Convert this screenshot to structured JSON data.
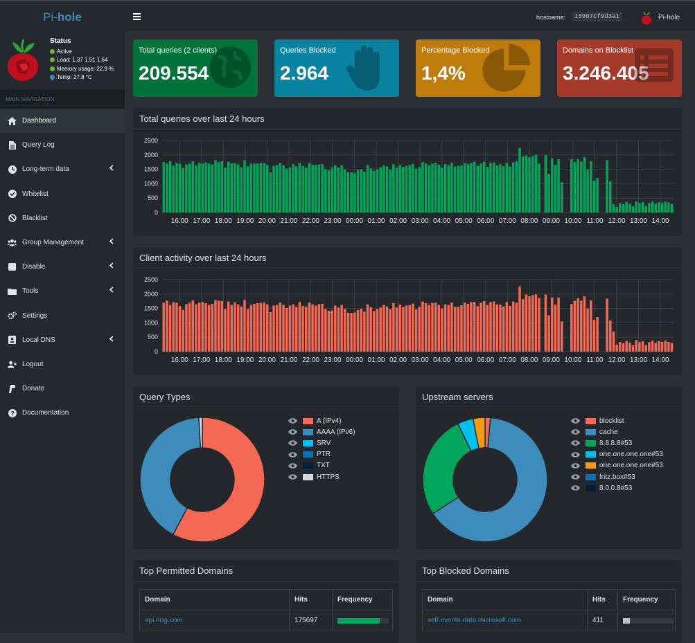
{
  "app": {
    "name_part1": "Pi-",
    "name_part2": "hole"
  },
  "status": {
    "title": "Status",
    "active": "Active",
    "load": "Load:  1.37  1.51  1.64",
    "memory": "Memory usage:  22.9 %",
    "temp": "Temp: 27.8 °C"
  },
  "nav": {
    "section": "MAIN NAVIGATION",
    "items": [
      {
        "label": "Dashboard",
        "icon": "home-icon"
      },
      {
        "label": "Query Log",
        "icon": "file-icon"
      },
      {
        "label": "Long-term data",
        "icon": "clock-icon"
      },
      {
        "label": "Whitelist",
        "icon": "check-circle-icon"
      },
      {
        "label": "Blacklist",
        "icon": "ban-icon"
      },
      {
        "label": "Group Management",
        "icon": "users-icon"
      },
      {
        "label": "Disable",
        "icon": "stop-icon"
      },
      {
        "label": "Tools",
        "icon": "folder-icon"
      },
      {
        "label": "Settings",
        "icon": "cogs-icon"
      },
      {
        "label": "Local DNS",
        "icon": "address-book-icon"
      },
      {
        "label": "Logout",
        "icon": "user-times-icon"
      },
      {
        "label": "Donate",
        "icon": "paypal-icon"
      },
      {
        "label": "Documentation",
        "icon": "question-circle-icon"
      }
    ]
  },
  "topbar": {
    "hostname_label": "hostname:",
    "hostname_value": "13907cf9d3a1",
    "user": "Pi-hole"
  },
  "stats": [
    {
      "label": "Total queries (2 clients)",
      "value": "209.554",
      "color": "#00733a"
    },
    {
      "label": "Queries Blocked",
      "value": "2.964",
      "color": "#0a83a1"
    },
    {
      "label": "Percentage Blocked",
      "value": "1,4%",
      "color": "#bf7c0b"
    },
    {
      "label": "Domains on Blocklist",
      "value": "3.246.405",
      "color": "#a53a2b"
    }
  ],
  "panels": {
    "total_queries": "Total queries over last 24 hours",
    "client_activity": "Client activity over last 24 hours",
    "query_types": "Query Types",
    "upstream": "Upstream servers",
    "top_permitted": "Top Permitted Domains",
    "top_blocked": "Top Blocked Domains"
  },
  "chart_data": [
    {
      "type": "bar",
      "title": "Total queries over last 24 hours",
      "ylim": [
        0,
        2500
      ],
      "yticks": [
        "2500",
        "2000",
        "1500",
        "1000",
        "500",
        "0"
      ],
      "xticks": [
        "16:00",
        "17:00",
        "18:00",
        "19:00",
        "20:00",
        "21:00",
        "22:00",
        "23:00",
        "00:00",
        "01:00",
        "02:00",
        "03:00",
        "04:00",
        "05:00",
        "06:00",
        "07:00",
        "08:00",
        "09:00",
        "10:00",
        "11:00",
        "12:00",
        "13:00",
        "14:00"
      ],
      "series": [
        {
          "values": [
            1750,
            1700,
            1780,
            1620,
            1720,
            1700,
            1550,
            1670,
            1700,
            1780,
            1640,
            1720,
            1700,
            1740,
            1700,
            1670,
            1820,
            1750,
            1780,
            1560,
            1760,
            1700,
            1720,
            1670,
            1570,
            1820,
            1600,
            1700,
            1700,
            1700,
            1720,
            1730,
            1660,
            1400,
            1620,
            1650,
            1710,
            1640,
            1530,
            1570,
            1680,
            1600,
            1720,
            1620,
            1560,
            1720,
            1660,
            1650,
            1670,
            1680,
            1500,
            1460,
            1570,
            1640,
            1560,
            1640,
            1500,
            1400,
            1400,
            1370,
            1480,
            1500,
            1420,
            1650,
            1530,
            1450,
            1500,
            1570,
            1640,
            1600,
            1500,
            1680,
            1560,
            1650,
            1580,
            1620,
            1650,
            1690,
            1520,
            1580,
            1750,
            1700,
            1640,
            1700,
            1730,
            1660,
            1560,
            1680,
            1640,
            1720,
            1600,
            1620,
            1630,
            1720,
            1690,
            1720,
            1760,
            1620,
            1700,
            1760,
            1580,
            1730,
            1740,
            1640,
            1680,
            1610,
            1720,
            1600,
            1740,
            1780,
            2250,
            1940,
            1980,
            1920,
            1960,
            2000,
            1700,
            0,
            2000,
            1340,
            1880,
            1650,
            1850,
            1050,
            0,
            0,
            1850,
            1760,
            1850,
            1770,
            1920,
            1500,
            1780,
            1100,
            1200,
            0,
            0,
            1820,
            1080,
            290,
            190,
            330,
            290,
            370,
            310,
            220,
            390,
            330,
            360,
            230,
            330,
            380,
            300,
            360,
            340,
            380,
            350,
            300
          ]
        }
      ]
    },
    {
      "type": "bar",
      "title": "Client activity over last 24 hours",
      "ylim": [
        0,
        2500
      ],
      "yticks": [
        "2500",
        "2000",
        "1500",
        "1000",
        "500",
        "0"
      ],
      "xticks": [
        "16:00",
        "17:00",
        "18:00",
        "19:00",
        "20:00",
        "21:00",
        "22:00",
        "23:00",
        "00:00",
        "01:00",
        "02:00",
        "03:00",
        "04:00",
        "05:00",
        "06:00",
        "07:00",
        "08:00",
        "09:00",
        "10:00",
        "11:00",
        "12:00",
        "13:00",
        "14:00"
      ],
      "series": [
        {
          "values": [
            1700,
            1770,
            1620,
            1720,
            1700,
            1580,
            1450,
            1650,
            1700,
            1780,
            1640,
            1700,
            1720,
            1680,
            1620,
            1660,
            1790,
            1770,
            1760,
            1480,
            1740,
            1620,
            1710,
            1640,
            1570,
            1800,
            1480,
            1620,
            1660,
            1680,
            1690,
            1710,
            1640,
            1370,
            1600,
            1620,
            1700,
            1620,
            1520,
            1600,
            1640,
            1560,
            1720,
            1590,
            1560,
            1700,
            1640,
            1600,
            1650,
            1660,
            1480,
            1420,
            1430,
            1600,
            1530,
            1620,
            1480,
            1350,
            1340,
            1360,
            1440,
            1490,
            1390,
            1640,
            1540,
            1410,
            1480,
            1530,
            1620,
            1570,
            1470,
            1680,
            1530,
            1630,
            1550,
            1600,
            1620,
            1670,
            1470,
            1560,
            1740,
            1680,
            1620,
            1690,
            1700,
            1620,
            1500,
            1640,
            1620,
            1700,
            1560,
            1560,
            1610,
            1700,
            1660,
            1720,
            1730,
            1580,
            1700,
            1750,
            1620,
            1720,
            1740,
            1640,
            1630,
            1570,
            1720,
            1590,
            1740,
            1700,
            2260,
            1820,
            1980,
            1920,
            1960,
            1990,
            1860,
            0,
            1980,
            1260,
            1880,
            1630,
            1880,
            1050,
            0,
            0,
            1650,
            1760,
            1850,
            1770,
            1930,
            1500,
            1780,
            1100,
            1200,
            0,
            0,
            1840,
            1080,
            700,
            240,
            330,
            290,
            370,
            310,
            220,
            400,
            330,
            360,
            230,
            330,
            380,
            300,
            360,
            340,
            380,
            340,
            300
          ]
        }
      ]
    },
    {
      "type": "pie",
      "title": "Query Types",
      "labels": [
        "A (IPv4)",
        "AAAA (IPv6)",
        "SRV",
        "PTR",
        "TXT",
        "HTTPS"
      ],
      "values": [
        57.8,
        41.3,
        0.0,
        0.0,
        0.0,
        0.9
      ],
      "colors": [
        "#f56954",
        "#3c8dbc",
        "#00c0ef",
        "#0073b7",
        "#001f3f",
        "#d2d6de"
      ]
    },
    {
      "type": "pie",
      "title": "Upstream servers",
      "labels": [
        "blocklist",
        "cache",
        "8.8.8.8#53",
        "one.one.one.one#53",
        "one.one.one.one#53",
        "fritz.box#53",
        "8.0.0.8#53"
      ],
      "values": [
        1.4,
        64.4,
        27.0,
        4.1,
        3.1,
        0.0,
        0.0
      ],
      "colors": [
        "#f56954",
        "#3c8dbc",
        "#00a65a",
        "#00c0ef",
        "#f39c12",
        "#0073b7",
        "#001f3f"
      ]
    }
  ],
  "tables": {
    "permitted": {
      "headers": [
        "Domain",
        "Hits",
        "Frequency"
      ],
      "rows": [
        {
          "domain": "api.ring.com",
          "hits": "175697",
          "freq": 0.83,
          "color": "#00a65a"
        }
      ]
    },
    "blocked": {
      "headers": [
        "Domain",
        "Hits",
        "Frequency"
      ],
      "rows": [
        {
          "domain": "self.events.data.microsoft.com",
          "hits": "411",
          "freq": 0.14,
          "color": "#bfbfbf"
        }
      ]
    }
  }
}
